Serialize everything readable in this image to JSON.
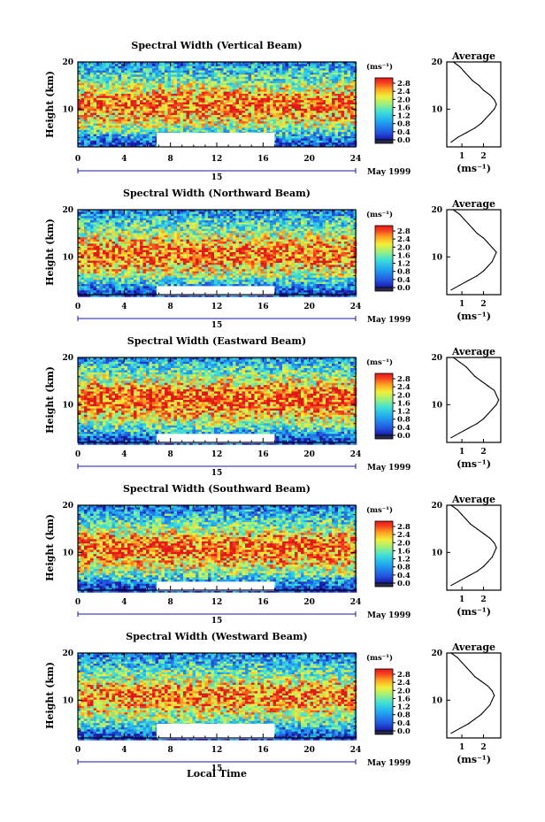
{
  "figure": {
    "xlabel": "Local Time",
    "date_label": "May 1999",
    "day_label": "15",
    "ylabel": "Height (km)",
    "unit_label": "(ms⁻¹)",
    "unit_label_average": "(ms⁻¹)",
    "average_title": "Average"
  },
  "chart_data": [
    {
      "type": "heatmap",
      "title": "Spectral Width (Vertical Beam)",
      "xlabel": "Local Time",
      "ylabel": "Height (km)",
      "xlim": [
        0,
        24
      ],
      "ylim": [
        2,
        20
      ],
      "x_ticks": [
        0,
        4,
        8,
        12,
        16,
        20,
        24
      ],
      "y_ticks": [
        10,
        20
      ],
      "colorbar": {
        "ticks": [
          0.0,
          0.4,
          0.8,
          1.2,
          1.6,
          2.0,
          2.4,
          2.8
        ],
        "tick_labels": [
          "0.0",
          "0.4",
          "0.8",
          "1.2",
          "1.6",
          "2.0",
          "2.4",
          "2.8"
        ],
        "unit": "(ms⁻¹)"
      },
      "no_data_gap": {
        "x": [
          6.8,
          17.0
        ],
        "y": [
          2.2,
          5.0
        ]
      },
      "average_profile": {
        "title": "Average",
        "xlabel": "(ms⁻¹)",
        "x_ticks": [
          1,
          2
        ],
        "xlim": [
          0.3,
          2.8
        ],
        "ylim": [
          2,
          20
        ],
        "y_ticks": [
          10,
          20
        ],
        "height": [
          3,
          4,
          5,
          6,
          7,
          8,
          9,
          10,
          11,
          12,
          13,
          14,
          15,
          16,
          17,
          18,
          19,
          20
        ],
        "width": [
          0.5,
          0.8,
          1.2,
          1.6,
          1.9,
          2.1,
          2.3,
          2.5,
          2.6,
          2.5,
          2.3,
          2.0,
          1.8,
          1.5,
          1.3,
          1.1,
          0.9,
          0.6
        ]
      }
    },
    {
      "type": "heatmap",
      "title": "Spectral Width (Northward Beam)",
      "xlabel": "Local Time",
      "ylabel": "Height (km)",
      "xlim": [
        0,
        24
      ],
      "ylim": [
        2,
        20
      ],
      "x_ticks": [
        0,
        4,
        8,
        12,
        16,
        20,
        24
      ],
      "y_ticks": [
        10,
        20
      ],
      "colorbar": {
        "ticks": [
          0.0,
          0.4,
          0.8,
          1.2,
          1.6,
          2.0,
          2.4,
          2.8
        ],
        "tick_labels": [
          "0.0",
          "0.4",
          "0.8",
          "1.2",
          "1.6",
          "2.0",
          "2.4",
          "2.8"
        ],
        "unit": "(ms⁻¹)"
      },
      "no_data_gap": {
        "x": [
          6.8,
          17.0
        ],
        "y": [
          2.2,
          3.8
        ]
      },
      "average_profile": {
        "title": "Average",
        "xlabel": "(ms⁻¹)",
        "x_ticks": [
          1,
          2
        ],
        "xlim": [
          0.3,
          2.8
        ],
        "ylim": [
          2,
          20
        ],
        "y_ticks": [
          10,
          20
        ],
        "height": [
          3,
          4,
          5,
          6,
          7,
          8,
          9,
          10,
          11,
          12,
          13,
          14,
          15,
          16,
          17,
          18,
          19,
          20
        ],
        "width": [
          0.5,
          0.9,
          1.3,
          1.7,
          2.0,
          2.2,
          2.4,
          2.5,
          2.6,
          2.4,
          2.2,
          2.0,
          1.7,
          1.5,
          1.3,
          1.1,
          0.9,
          0.6
        ]
      }
    },
    {
      "type": "heatmap",
      "title": "Spectral Width (Eastward Beam)",
      "xlabel": "Local Time",
      "ylabel": "Height (km)",
      "xlim": [
        0,
        24
      ],
      "ylim": [
        2,
        20
      ],
      "x_ticks": [
        0,
        4,
        8,
        12,
        16,
        20,
        24
      ],
      "y_ticks": [
        10,
        20
      ],
      "colorbar": {
        "ticks": [
          0.0,
          0.4,
          0.8,
          1.2,
          1.6,
          2.0,
          2.4,
          2.8
        ],
        "tick_labels": [
          "0.0",
          "0.4",
          "0.8",
          "1.2",
          "1.6",
          "2.0",
          "2.4",
          "2.8"
        ],
        "unit": "(ms⁻¹)"
      },
      "no_data_gap": {
        "x": [
          6.8,
          17.0
        ],
        "y": [
          2.2,
          3.8
        ]
      },
      "average_profile": {
        "title": "Average",
        "xlabel": "(ms⁻¹)",
        "x_ticks": [
          1,
          2
        ],
        "xlim": [
          0.3,
          2.8
        ],
        "ylim": [
          2,
          20
        ],
        "y_ticks": [
          10,
          20
        ],
        "height": [
          3,
          4,
          5,
          6,
          7,
          8,
          9,
          10,
          11,
          12,
          13,
          14,
          15,
          16,
          17,
          18,
          19,
          20
        ],
        "width": [
          0.5,
          0.9,
          1.3,
          1.7,
          2.0,
          2.2,
          2.4,
          2.6,
          2.7,
          2.6,
          2.5,
          2.2,
          1.9,
          1.6,
          1.4,
          1.2,
          0.9,
          0.6
        ]
      }
    },
    {
      "type": "heatmap",
      "title": "Spectral Width (Southward Beam)",
      "xlabel": "Local Time",
      "ylabel": "Height (km)",
      "xlim": [
        0,
        24
      ],
      "ylim": [
        2,
        20
      ],
      "x_ticks": [
        0,
        4,
        8,
        12,
        16,
        20,
        24
      ],
      "y_ticks": [
        10,
        20
      ],
      "colorbar": {
        "ticks": [
          0.0,
          0.4,
          0.8,
          1.2,
          1.6,
          2.0,
          2.4,
          2.8
        ],
        "tick_labels": [
          "0.0",
          "0.4",
          "0.8",
          "1.2",
          "1.6",
          "2.0",
          "2.4",
          "2.8"
        ],
        "unit": "(ms⁻¹)"
      },
      "no_data_gap": {
        "x": [
          6.8,
          17.0
        ],
        "y": [
          2.2,
          3.8
        ]
      },
      "average_profile": {
        "title": "Average",
        "xlabel": "(ms⁻¹)",
        "x_ticks": [
          1,
          2
        ],
        "xlim": [
          0.3,
          2.8
        ],
        "ylim": [
          2,
          20
        ],
        "y_ticks": [
          10,
          20
        ],
        "height": [
          3,
          4,
          5,
          6,
          7,
          8,
          9,
          10,
          11,
          12,
          13,
          14,
          15,
          16,
          17,
          18,
          19,
          20
        ],
        "width": [
          0.5,
          0.9,
          1.3,
          1.7,
          2.0,
          2.2,
          2.4,
          2.5,
          2.6,
          2.5,
          2.3,
          2.0,
          1.7,
          1.4,
          1.2,
          1.0,
          0.8,
          0.5
        ]
      }
    },
    {
      "type": "heatmap",
      "title": "Spectral Width (Westward Beam)",
      "xlabel": "Local Time",
      "ylabel": "Height (km)",
      "xlim": [
        0,
        24
      ],
      "ylim": [
        2,
        20
      ],
      "x_ticks": [
        0,
        4,
        8,
        12,
        16,
        20,
        24
      ],
      "y_ticks": [
        10,
        20
      ],
      "colorbar": {
        "ticks": [
          0.0,
          0.4,
          0.8,
          1.2,
          1.6,
          2.0,
          2.4,
          2.8
        ],
        "tick_labels": [
          "0.0",
          "0.4",
          "0.8",
          "1.2",
          "1.6",
          "2.0",
          "2.4",
          "2.8"
        ],
        "unit": "(ms⁻¹)"
      },
      "no_data_gap": {
        "x": [
          6.8,
          17.0
        ],
        "y": [
          2.2,
          5.0
        ]
      },
      "average_profile": {
        "title": "Average",
        "xlabel": "(ms⁻¹)",
        "x_ticks": [
          1,
          2
        ],
        "xlim": [
          0.3,
          2.8
        ],
        "ylim": [
          2,
          20
        ],
        "y_ticks": [
          10,
          20
        ],
        "height": [
          3,
          4,
          5,
          6,
          7,
          8,
          9,
          10,
          11,
          12,
          13,
          14,
          15,
          16,
          17,
          18,
          19,
          20
        ],
        "width": [
          0.5,
          0.9,
          1.3,
          1.6,
          1.9,
          2.1,
          2.3,
          2.4,
          2.5,
          2.4,
          2.2,
          1.9,
          1.6,
          1.4,
          1.2,
          1.0,
          0.8,
          0.5
        ]
      }
    }
  ]
}
